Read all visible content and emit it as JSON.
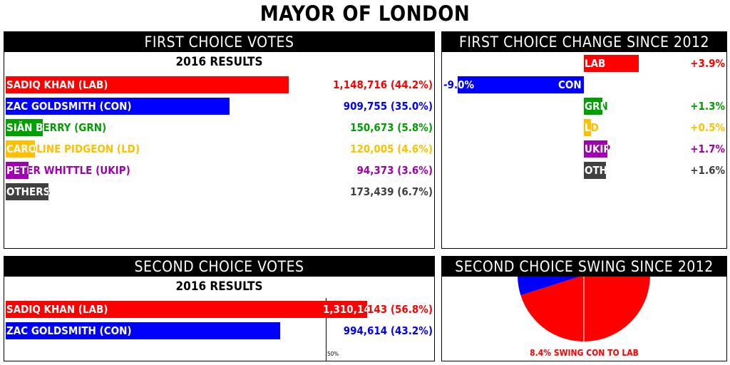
{
  "title": "MAYOR OF LONDON",
  "colors": {
    "LAB": "#ff0000",
    "CON": "#0000ff",
    "GRN": "#00a000",
    "LD": "#ffc000",
    "UKIP": "#a000b0",
    "OTH": "#404040"
  },
  "first_choice": {
    "header": "FIRST CHOICE VOTES",
    "subtitle": "2016 RESULTS",
    "rows": [
      {
        "label": "SADIQ KHAN (LAB)",
        "value_text": "1,148,716 (44.2%)",
        "pct": 44.2,
        "party": "LAB"
      },
      {
        "label": "ZAC GOLDSMITH (CON)",
        "value_text": "909,755 (35.0%)",
        "pct": 35.0,
        "party": "CON"
      },
      {
        "label": "SIÂN BERRY (GRN)",
        "value_text": "150,673 (5.8%)",
        "pct": 5.8,
        "party": "GRN"
      },
      {
        "label": "CAROLINE PIDGEON (LD)",
        "value_text": "120,005 (4.6%)",
        "pct": 4.6,
        "party": "LD"
      },
      {
        "label": "PETER WHITTLE (UKIP)",
        "value_text": "94,373 (3.6%)",
        "pct": 3.6,
        "party": "UKIP"
      },
      {
        "label": "OTHERS",
        "value_text": "173,439 (6.7%)",
        "pct": 6.7,
        "party": "OTH"
      }
    ]
  },
  "first_change": {
    "header": "FIRST CHOICE CHANGE SINCE 2012",
    "rows": [
      {
        "label": "LAB",
        "change": 3.9,
        "value_text": "+3.9%",
        "party": "LAB"
      },
      {
        "label": "CON",
        "change": -9.0,
        "value_text": "-9.0%",
        "party": "CON"
      },
      {
        "label": "GRN",
        "change": 1.3,
        "value_text": "+1.3%",
        "party": "GRN"
      },
      {
        "label": "LD",
        "change": 0.5,
        "value_text": "+0.5%",
        "party": "LD"
      },
      {
        "label": "UKIP",
        "change": 1.7,
        "value_text": "+1.7%",
        "party": "UKIP"
      },
      {
        "label": "OTH",
        "change": 1.6,
        "value_text": "+1.6%",
        "party": "OTH"
      }
    ]
  },
  "second_choice": {
    "header": "SECOND CHOICE VOTES",
    "subtitle": "2016 RESULTS",
    "marker_label": "50%",
    "rows": [
      {
        "label": "SADIQ KHAN (LAB)",
        "value_text": "1,310,143 (56.8%)",
        "pct": 56.8,
        "party": "LAB"
      },
      {
        "label": "ZAC GOLDSMITH (CON)",
        "value_text": "994,614 (43.2%)",
        "pct": 43.2,
        "party": "CON"
      }
    ]
  },
  "swing": {
    "header": "SECOND CHOICE SWING SINCE 2012",
    "swing_pct": 8.4,
    "caption": "8.4% SWING CON TO LAB"
  },
  "chart_data": [
    {
      "type": "bar",
      "title": "FIRST CHOICE VOTES",
      "subtitle": "2016 RESULTS",
      "categories": [
        "SADIQ KHAN (LAB)",
        "ZAC GOLDSMITH (CON)",
        "SIÂN BERRY (GRN)",
        "CAROLINE PIDGEON (LD)",
        "PETER WHITTLE (UKIP)",
        "OTHERS"
      ],
      "values": [
        44.2,
        35.0,
        5.8,
        4.6,
        3.6,
        6.7
      ],
      "votes": [
        1148716,
        909755,
        150673,
        120005,
        94373,
        173439
      ]
    },
    {
      "type": "bar",
      "title": "FIRST CHOICE CHANGE SINCE 2012",
      "categories": [
        "LAB",
        "CON",
        "GRN",
        "LD",
        "UKIP",
        "OTH"
      ],
      "values": [
        3.9,
        -9.0,
        1.3,
        0.5,
        1.7,
        1.6
      ]
    },
    {
      "type": "bar",
      "title": "SECOND CHOICE VOTES",
      "subtitle": "2016 RESULTS",
      "categories": [
        "SADIQ KHAN (LAB)",
        "ZAC GOLDSMITH (CON)"
      ],
      "values": [
        56.8,
        43.2
      ],
      "votes": [
        1310143,
        994614
      ]
    },
    {
      "type": "pie",
      "title": "SECOND CHOICE SWING SINCE 2012",
      "swing": 8.4,
      "annotation": "8.4% SWING CON TO LAB"
    }
  ]
}
